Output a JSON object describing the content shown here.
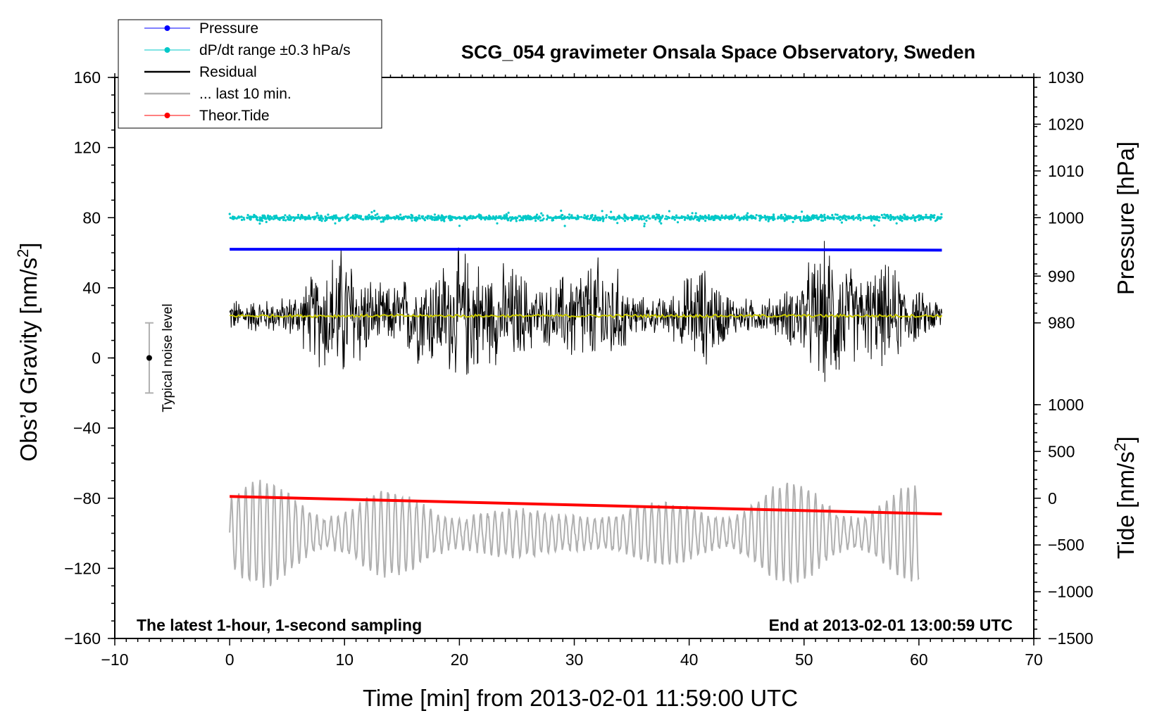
{
  "chart_data": {
    "type": "line",
    "title": "SCG_054 gravimeter Onsala Space Observatory, Sweden",
    "footer_left": "The latest 1-hour, 1-second sampling",
    "footer_right": "End at 2013-02-01 13:00:59 UTC",
    "xlabel": "Time [min] from 2013-02-01 11:59:00 UTC",
    "xlim": [
      -10,
      70
    ],
    "xticks": [
      -10,
      0,
      10,
      20,
      30,
      40,
      50,
      60,
      70
    ],
    "xtick_labels": [
      "−10",
      "0",
      "10",
      "20",
      "30",
      "40",
      "50",
      "60",
      "70"
    ],
    "ylabel_left": "Obs’d Gravity [nm/s",
    "ylabel_left_sup": "2",
    "ylabel_left_end": "]",
    "ylim_left": [
      -160,
      160
    ],
    "yticks_left": [
      -160,
      -120,
      -80,
      -40,
      0,
      40,
      80,
      120,
      160
    ],
    "ytick_labels_left": [
      "−160",
      "−120",
      "−80",
      "−40",
      "0",
      "40",
      "80",
      "120",
      "160"
    ],
    "ylabel_pressure": "Pressure [hPa]",
    "pressure_axis": {
      "ticks": [
        980,
        990,
        1000,
        1010,
        1020,
        1030
      ],
      "labels": [
        "980",
        "990",
        "1000",
        "1010",
        "1020",
        "1030"
      ],
      "left_value_per_tick": [
        20,
        46.67,
        80,
        106.67,
        133.33,
        160
      ]
    },
    "ylabel_tide": "Tide [nm/s",
    "ylabel_tide_sup": "2",
    "ylabel_tide_end": "]",
    "tide_axis": {
      "ticks": [
        -1500,
        -1000,
        -500,
        0,
        500,
        1000
      ],
      "labels": [
        "−1500",
        "−1000",
        "−500",
        "0",
        "500",
        "1000"
      ]
    },
    "legend": {
      "placement": "top-left",
      "entries": [
        {
          "label": "Pressure",
          "color": "#0000ff",
          "marker": "dot"
        },
        {
          "label": "dP/dt range ±0.3 hPa/s",
          "color": "#00c8c8",
          "marker": "dot"
        },
        {
          "label": "Residual",
          "color": "#000000",
          "marker": "none"
        },
        {
          "label": "... last 10 min.",
          "color": "#b0b0b0",
          "marker": "none"
        },
        {
          "label": "Theor.Tide",
          "color": "#ff0000",
          "marker": "dot"
        }
      ]
    },
    "noise_indicator": {
      "label": "Typical noise level",
      "x": -7,
      "center": 0,
      "half_range": 20
    },
    "series": [
      {
        "name": "Pressure",
        "color": "#0000ff",
        "x": [
          0,
          36,
          62
        ],
        "y": [
          62,
          62,
          61.5
        ]
      },
      {
        "name": "dP/dt range ±0.3 hPa/s",
        "color": "#00c8c8",
        "x_range": [
          0,
          62
        ],
        "y_center": 80,
        "y_spread": 2
      },
      {
        "name": "Residual",
        "color": "#000000",
        "x_range": [
          0,
          62
        ],
        "y_center": 24,
        "y_min": -24,
        "y_max": 73
      },
      {
        "name": "residual smoothed",
        "color": "#c8c800",
        "x_range": [
          0,
          62
        ],
        "y_center": 24
      },
      {
        "name": "... last 10 min.",
        "color": "#b0b0b0",
        "x_range": [
          0,
          60
        ],
        "y_center": -100,
        "y_min": -140,
        "y_max": -57
      },
      {
        "name": "Theor.Tide",
        "color": "#ff0000",
        "x": [
          0,
          62
        ],
        "y": [
          -79,
          -89
        ]
      }
    ]
  }
}
